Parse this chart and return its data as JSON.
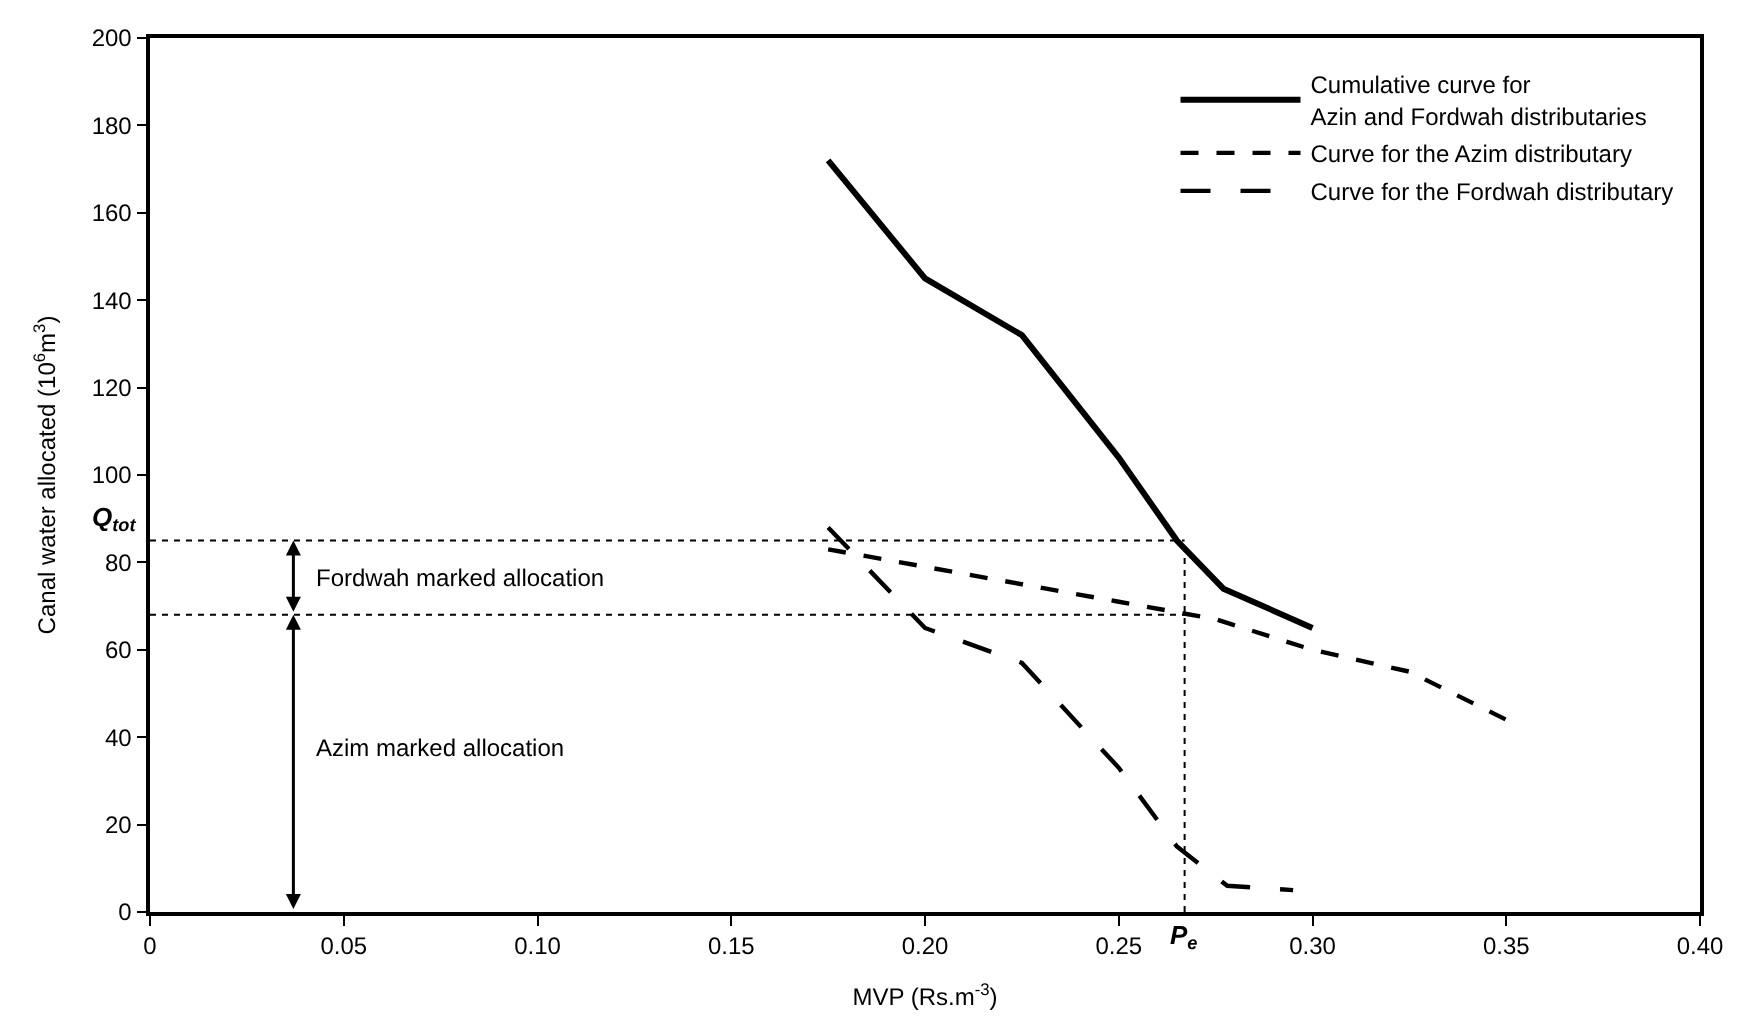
{
  "chart_data": {
    "type": "line",
    "xlabel": "MVP (Rs.m$^{-3}$)",
    "ylabel": "Canal water allocated (10$^{6}$m$^{3}$)",
    "xlim": [
      0,
      0.4
    ],
    "ylim": [
      0,
      200
    ],
    "xticks": [
      0,
      0.05,
      {
        "value": 0.1,
        "label": "0.10"
      },
      0.15,
      {
        "value": 0.2,
        "label": "0.20"
      },
      0.25,
      {
        "value": 0.3,
        "label": "0.30"
      },
      0.35,
      {
        "value": 0.4,
        "label": "0.40"
      }
    ],
    "yticks": [
      0,
      20,
      40,
      60,
      80,
      100,
      120,
      140,
      160,
      180,
      200
    ],
    "legend": "top right",
    "marker": "none",
    "series": [
      {
        "name": "Cumulative curve for\nAzin and Fordwah distributaries",
        "color": "#000000",
        "line_style": "solid",
        "x": [
          0.175,
          0.2,
          0.225,
          0.25,
          0.265,
          0.277,
          0.3
        ],
        "values": [
          172,
          145,
          132,
          104,
          85,
          74,
          65
        ]
      },
      {
        "name": "Curve for the Azim distributary",
        "color": "#000000",
        "line_style": "dashed",
        "x": [
          0.175,
          0.2,
          0.225,
          0.25,
          0.275,
          0.3,
          0.325,
          0.35
        ],
        "values": [
          83,
          79,
          75,
          71,
          67,
          60,
          55,
          44
        ]
      },
      {
        "name": "Curve for the Fordwah distributary",
        "color": "#000000",
        "line_style": "longdash",
        "x": [
          0.175,
          0.2,
          0.225,
          0.25,
          0.265,
          0.278,
          0.295
        ],
        "values": [
          88,
          65,
          57,
          33,
          15,
          6,
          5
        ]
      }
    ],
    "ref_lines": [
      {
        "axis": "y",
        "value": 85,
        "label": "Q$_{tot}$",
        "line_style": "dotted",
        "color": "#000000"
      },
      {
        "axis": "y",
        "value": 68,
        "label": null,
        "line_style": "dotted",
        "color": "#000000"
      },
      {
        "axis": "x",
        "value": 0.267,
        "label": "P$_{e}$",
        "line_style": "dotted",
        "color": "#000000"
      }
    ],
    "annotations": [
      "Fordwah marked allocation",
      "Azim marked allocation"
    ]
  }
}
